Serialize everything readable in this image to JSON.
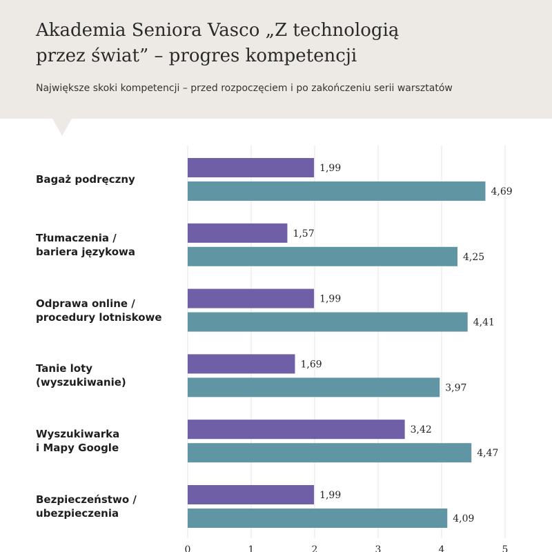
{
  "chart_data": {
    "type": "bar",
    "orientation": "horizontal",
    "title": "Akademia Seniora Vasco „Z technologią\nprzez świat” – progres kompetencji",
    "subtitle": "Największe skoki kompetencji – przed rozpoczęciem i po zakończeniu serii warsztatów",
    "categories": [
      "Bagaż podręczny",
      "Tłumaczenia /\nbariera językowa",
      "Odprawa online /\nprocedury lotniskowe",
      "Tanie loty\n(wyszukiwanie)",
      "Wyszukiwarka\ni Mapy Google",
      "Bezpieczeństwo /\nubezpieczenia"
    ],
    "series": [
      {
        "color": "#6e5fa6",
        "values": [
          1.99,
          1.57,
          1.99,
          1.69,
          3.42,
          1.99
        ],
        "value_labels": [
          "1,99",
          "1,57",
          "1,99",
          "1,69",
          "3,42",
          "1,99"
        ]
      },
      {
        "color": "#6096a4",
        "values": [
          4.69,
          4.25,
          4.41,
          3.97,
          4.47,
          4.09
        ],
        "value_labels": [
          "4,69",
          "4,25",
          "4,41",
          "3,97",
          "4,47",
          "4,09"
        ]
      }
    ],
    "xlim": [
      0,
      5
    ],
    "xticks": [
      0,
      1,
      2,
      3,
      4,
      5
    ],
    "grid": true
  }
}
